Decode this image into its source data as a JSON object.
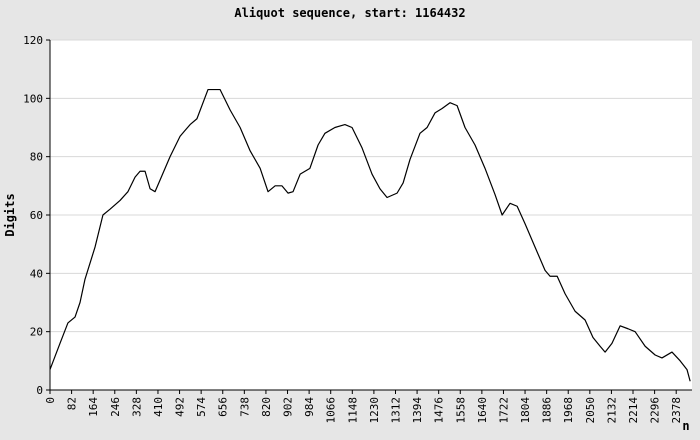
{
  "chart_data": {
    "type": "line",
    "title": "Aliquot sequence, start: 1164432",
    "y_label": "Digits",
    "x_label": "n",
    "x": [
      0,
      38,
      68,
      95,
      114,
      133,
      171,
      201,
      228,
      266,
      296,
      323,
      342,
      361,
      380,
      399,
      418,
      456,
      494,
      513,
      532,
      558,
      600,
      646,
      684,
      722,
      760,
      798,
      828,
      855,
      881,
      904,
      923,
      950,
      987,
      1018,
      1044,
      1082,
      1120,
      1147,
      1185,
      1223,
      1253,
      1280,
      1318,
      1341,
      1367,
      1405,
      1432,
      1462,
      1489,
      1519,
      1546,
      1576,
      1614,
      1652,
      1690,
      1717,
      1747,
      1774,
      1804,
      1842,
      1880,
      1899,
      1926,
      1956,
      1994,
      2032,
      2062,
      2089,
      2108,
      2134,
      2165,
      2195,
      2222,
      2260,
      2298,
      2324,
      2362,
      2393,
      2419,
      2431
    ],
    "values": [
      7,
      16,
      23,
      25,
      30,
      38,
      49,
      60,
      62,
      65,
      68,
      73,
      75,
      75,
      69,
      68,
      72,
      80,
      87,
      89,
      91,
      93,
      103,
      103,
      96,
      90,
      82,
      76,
      68,
      70,
      70,
      67.5,
      68,
      74,
      76,
      84,
      88,
      90,
      91,
      90,
      83,
      74,
      69,
      66,
      67.5,
      71,
      79,
      88,
      90,
      95,
      96.5,
      98.5,
      97.5,
      90,
      84,
      76,
      67,
      60,
      64,
      63,
      57,
      49,
      41,
      39,
      39,
      33,
      27,
      24,
      18,
      15,
      13,
      16,
      22,
      21,
      20,
      15,
      12,
      11,
      13,
      10,
      7,
      3
    ],
    "color": "#000000",
    "xlim": [
      0,
      2438
    ],
    "ylim": [
      0,
      120
    ],
    "xticks": [
      0,
      82,
      164,
      246,
      328,
      410,
      492,
      574,
      656,
      738,
      820,
      902,
      984,
      1066,
      1148,
      1230,
      1312,
      1394,
      1476,
      1558,
      1640,
      1722,
      1804,
      1886,
      1968,
      2050,
      2132,
      2214,
      2296,
      2378
    ],
    "yticks": [
      0,
      20,
      40,
      60,
      80,
      100,
      120
    ],
    "grid": true
  }
}
